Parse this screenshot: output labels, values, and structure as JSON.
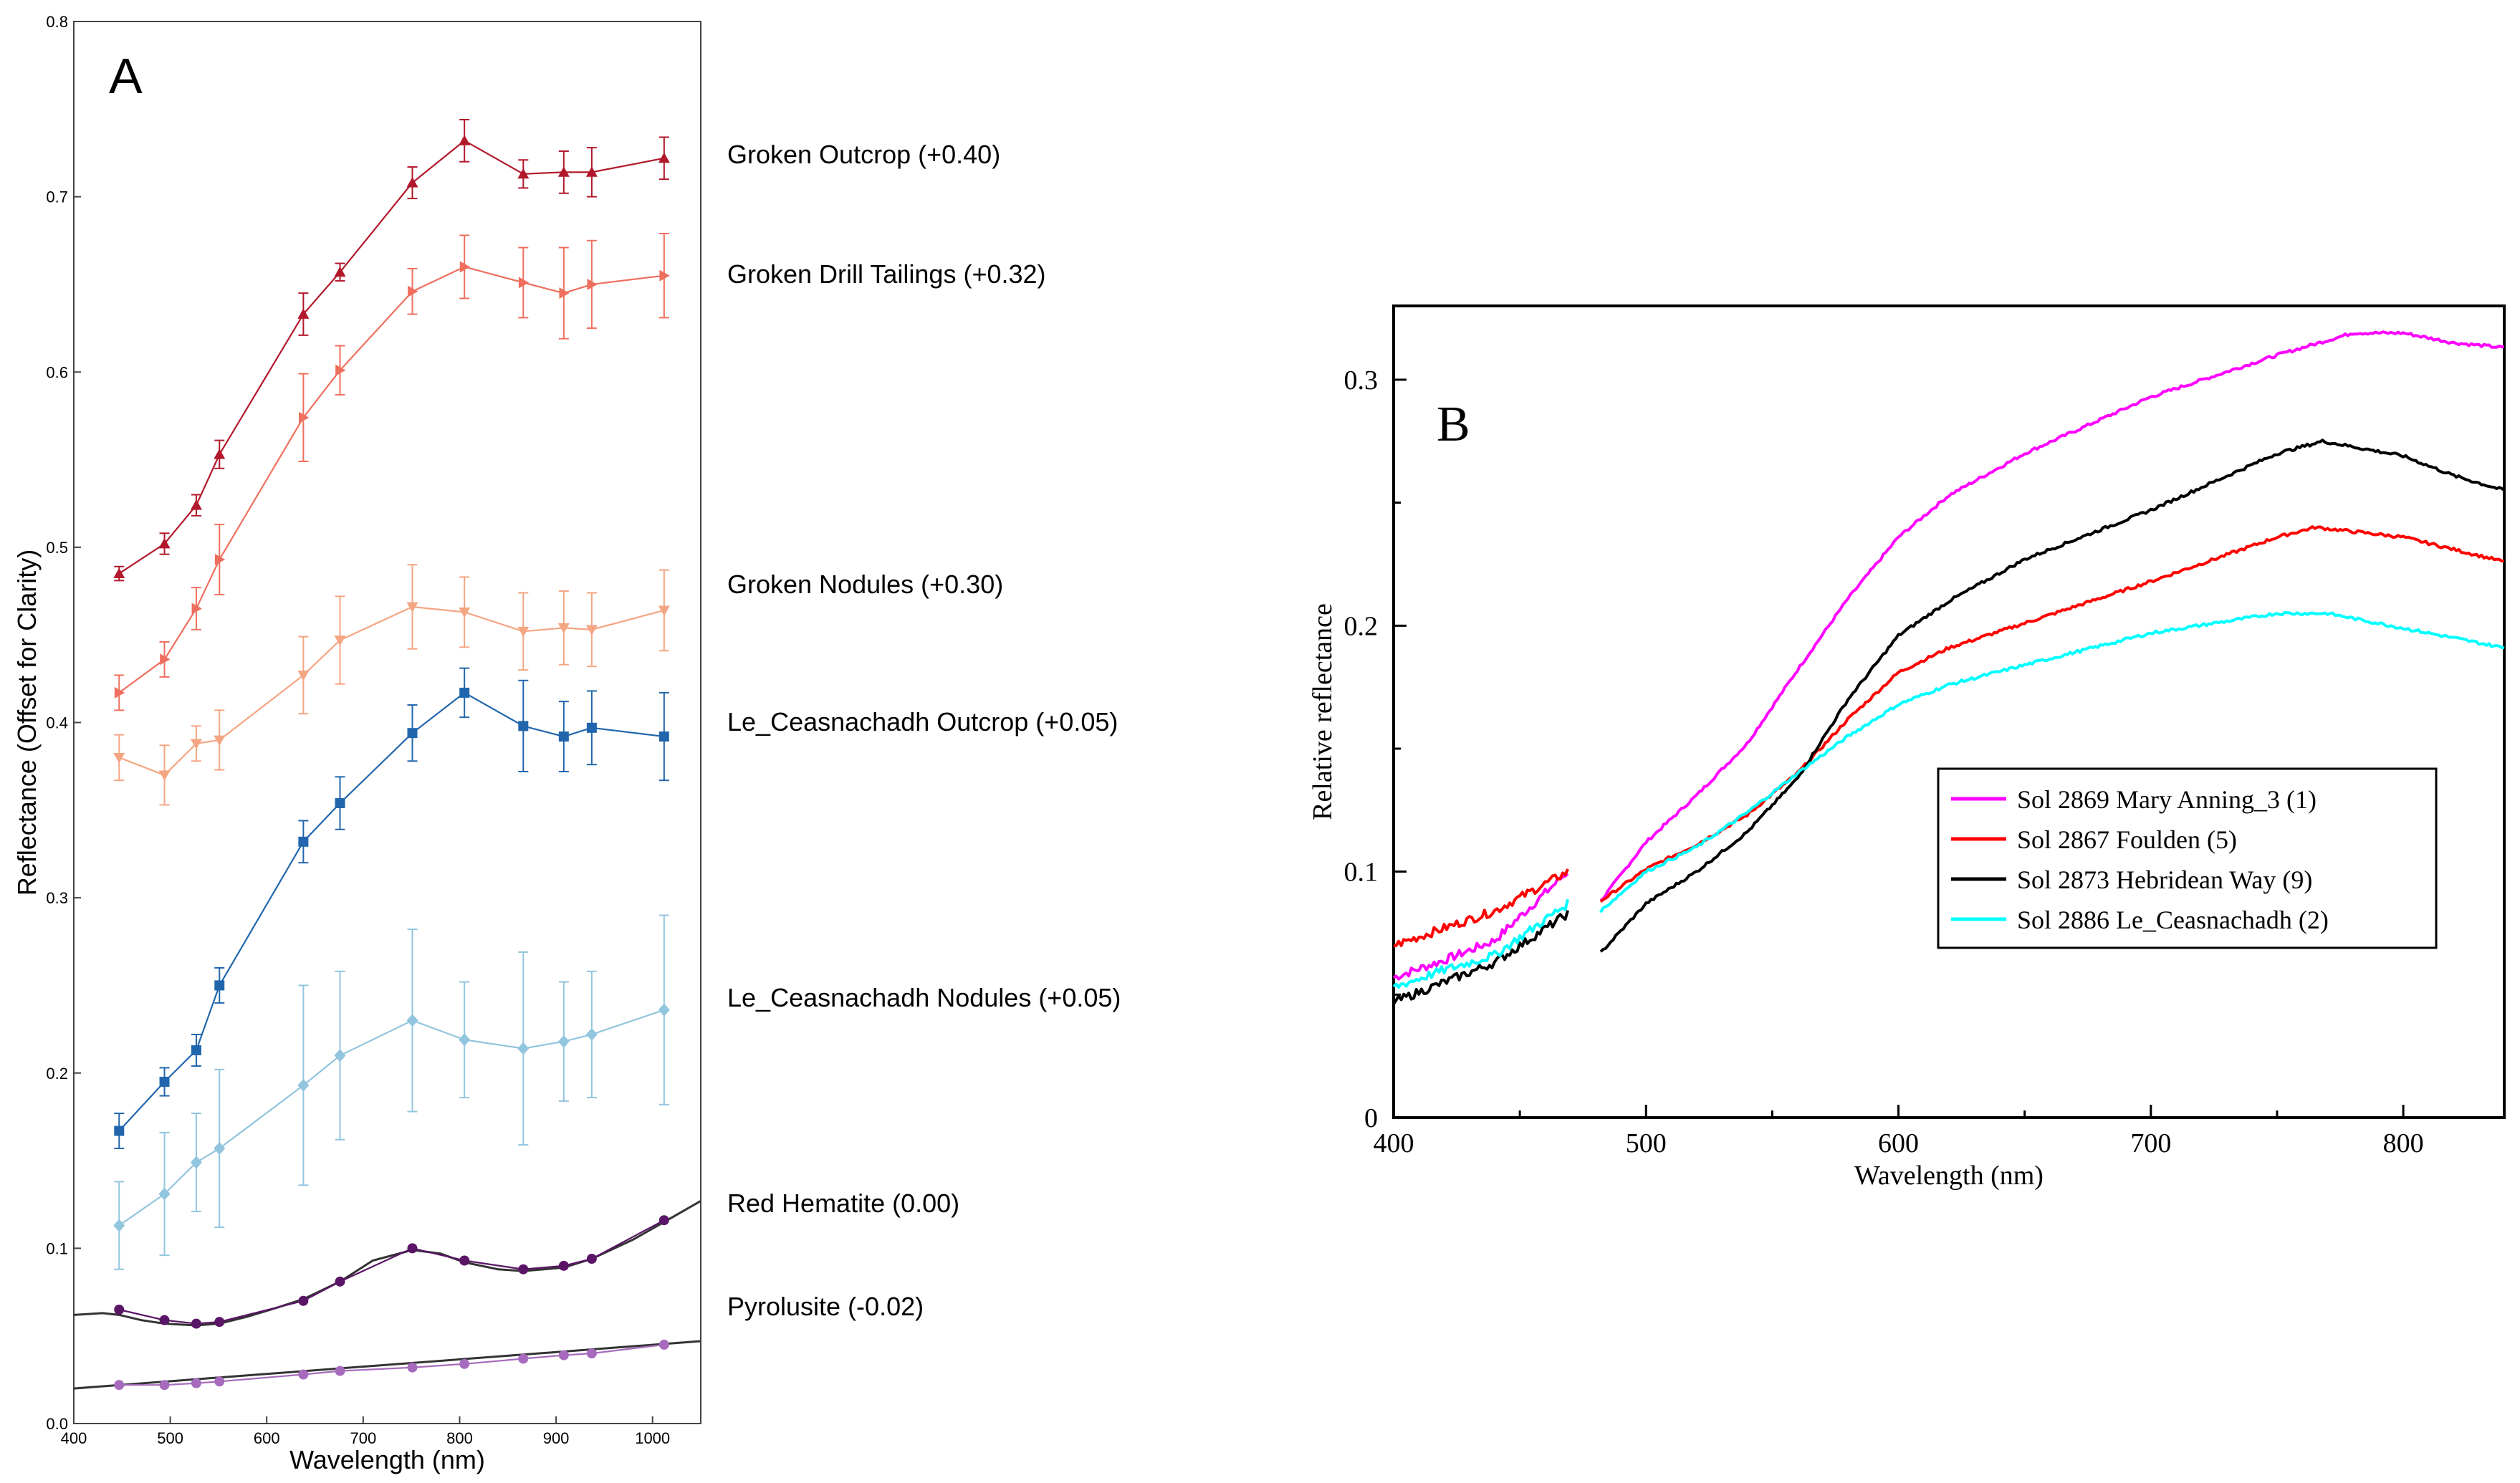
{
  "chart_data": [
    {
      "panel": "A",
      "type": "line",
      "title": "",
      "xlabel": "Wavelength (nm)",
      "ylabel": "Reflectance (Offset for Clarity)",
      "xlim": [
        400,
        1050
      ],
      "ylim": [
        0.0,
        0.8
      ],
      "xticks": [
        400,
        500,
        600,
        700,
        800,
        900,
        1000
      ],
      "yticks": [
        0.0,
        0.1,
        0.2,
        0.3,
        0.4,
        0.5,
        0.6,
        0.7,
        0.8
      ],
      "xtick_labels": [
        "400",
        "500",
        "600",
        "700",
        "800",
        "900",
        "1000"
      ],
      "ytick_labels": [
        "0.0",
        "0.1",
        "0.2",
        "0.3",
        "0.4",
        "0.5",
        "0.6",
        "0.7",
        "0.8"
      ],
      "x": [
        447,
        494,
        527,
        551,
        638,
        676,
        751,
        805,
        866,
        908,
        937,
        1012
      ],
      "series": [
        {
          "name": "Groken Outcrop (+0.40)",
          "color": "#b2182b",
          "marker": "triangle-up",
          "values": [
            0.485,
            0.502,
            0.524,
            0.553,
            0.633,
            0.657,
            0.708,
            0.732,
            0.713,
            0.714,
            0.714,
            0.722
          ],
          "errors": [
            0.004,
            0.006,
            0.006,
            0.008,
            0.012,
            0.005,
            0.009,
            0.012,
            0.008,
            0.012,
            0.014,
            0.012
          ]
        },
        {
          "name": "Groken Drill Tailings (+0.32)",
          "color": "#ef6f5e",
          "marker": "triangle-right",
          "values": [
            0.417,
            0.436,
            0.465,
            0.493,
            0.574,
            0.601,
            0.646,
            0.66,
            0.651,
            0.645,
            0.65,
            0.655
          ],
          "errors": [
            0.01,
            0.01,
            0.012,
            0.02,
            0.025,
            0.014,
            0.013,
            0.018,
            0.02,
            0.026,
            0.025,
            0.024
          ]
        },
        {
          "name": "Groken Nodules (+0.30)",
          "color": "#f4a582",
          "marker": "triangle-down",
          "values": [
            0.38,
            0.37,
            0.388,
            0.39,
            0.427,
            0.447,
            0.466,
            0.463,
            0.452,
            0.454,
            0.453,
            0.464
          ],
          "errors": [
            0.013,
            0.017,
            0.01,
            0.017,
            0.022,
            0.025,
            0.024,
            0.02,
            0.022,
            0.021,
            0.021,
            0.023
          ]
        },
        {
          "name": "Le_Ceasnachadh Outcrop (+0.05)",
          "color": "#2166ac",
          "marker": "square",
          "values": [
            0.167,
            0.195,
            0.213,
            0.25,
            0.332,
            0.354,
            0.394,
            0.417,
            0.398,
            0.392,
            0.397,
            0.392
          ],
          "errors": [
            0.01,
            0.008,
            0.009,
            0.01,
            0.012,
            0.015,
            0.016,
            0.014,
            0.026,
            0.02,
            0.021,
            0.025
          ]
        },
        {
          "name": "Le_Ceasnachadh Nodules (+0.05)",
          "color": "#92c5de",
          "marker": "diamond",
          "values": [
            0.113,
            0.131,
            0.149,
            0.157,
            0.193,
            0.21,
            0.23,
            0.219,
            0.214,
            0.218,
            0.222,
            0.236
          ],
          "errors": [
            0.025,
            0.035,
            0.028,
            0.045,
            0.057,
            0.048,
            0.052,
            0.033,
            0.055,
            0.034,
            0.036,
            0.054
          ]
        },
        {
          "name": "Red Hematite (0.00)",
          "color": "#5a1566",
          "marker": "circle",
          "values": [
            0.065,
            0.059,
            0.057,
            0.058,
            0.07,
            0.081,
            0.1,
            0.093,
            0.088,
            0.09,
            0.094,
            0.116
          ],
          "errors": [],
          "reference_curve": {
            "x": [
              400,
              430,
              447,
              470,
              494,
              527,
              551,
              580,
              610,
              638,
              676,
              710,
              751,
              780,
              805,
              840,
              866,
              908,
              937,
              980,
              1012,
              1050
            ],
            "values": [
              0.062,
              0.063,
              0.062,
              0.059,
              0.057,
              0.056,
              0.057,
              0.061,
              0.066,
              0.071,
              0.081,
              0.093,
              0.099,
              0.097,
              0.092,
              0.088,
              0.087,
              0.089,
              0.094,
              0.105,
              0.115,
              0.127
            ],
            "color": "#333333"
          }
        },
        {
          "name": "Pyrolusite (-0.02)",
          "color": "#a66bbd",
          "marker": "circle",
          "values": [
            0.022,
            0.022,
            0.023,
            0.024,
            0.028,
            0.03,
            0.032,
            0.034,
            0.037,
            0.039,
            0.04,
            0.045
          ],
          "errors": [],
          "reference_curve": {
            "x": [
              400,
              1050
            ],
            "values": [
              0.02,
              0.047
            ],
            "color": "#333333"
          }
        }
      ]
    },
    {
      "panel": "B",
      "type": "line",
      "title": "",
      "xlabel": "Wavelength (nm)",
      "ylabel": "Relative reflectance",
      "xlim": [
        400,
        840
      ],
      "ylim": [
        0.0,
        0.33
      ],
      "xticks": [
        400,
        500,
        600,
        700,
        800
      ],
      "yticks": [
        0.0,
        0.1,
        0.2,
        0.3
      ],
      "xtick_labels": [
        "400",
        "500",
        "600",
        "700",
        "800"
      ],
      "ytick_labels": [
        "0",
        "0.1",
        "0.2",
        "0.3"
      ],
      "legend_position": "lower-right",
      "gap": [
        469,
        482
      ],
      "series": [
        {
          "name": "Sol 2869 Mary Anning_3 (1)",
          "color": "#ff00ff",
          "x": [
            400,
            420,
            440,
            469,
            482,
            500,
            520,
            540,
            560,
            580,
            600,
            620,
            650,
            700,
            750,
            780,
            800,
            820,
            840
          ],
          "values": [
            0.057,
            0.064,
            0.072,
            0.1,
            0.088,
            0.112,
            0.131,
            0.152,
            0.182,
            0.211,
            0.236,
            0.253,
            0.27,
            0.293,
            0.31,
            0.319,
            0.319,
            0.315,
            0.313
          ]
        },
        {
          "name": "Sol 2867 Foulden (5)",
          "color": "#ff0000",
          "x": [
            400,
            420,
            440,
            469,
            482,
            500,
            520,
            540,
            560,
            580,
            600,
            620,
            650,
            700,
            750,
            765,
            800,
            820,
            840
          ],
          "values": [
            0.07,
            0.077,
            0.084,
            0.1,
            0.088,
            0.101,
            0.111,
            0.123,
            0.14,
            0.162,
            0.181,
            0.191,
            0.201,
            0.218,
            0.236,
            0.24,
            0.236,
            0.231,
            0.226
          ]
        },
        {
          "name": "Sol 2873 Hebridean Way (9)",
          "color": "#000000",
          "x": [
            400,
            420,
            440,
            469,
            482,
            500,
            520,
            540,
            560,
            580,
            600,
            620,
            650,
            700,
            750,
            768,
            800,
            820,
            840
          ],
          "values": [
            0.047,
            0.055,
            0.063,
            0.083,
            0.067,
            0.087,
            0.1,
            0.116,
            0.138,
            0.17,
            0.196,
            0.21,
            0.227,
            0.247,
            0.27,
            0.275,
            0.269,
            0.261,
            0.255
          ]
        },
        {
          "name": "Sol 2886 Le_Ceasnachadh (2)",
          "color": "#00ffff",
          "x": [
            400,
            420,
            440,
            469,
            482,
            500,
            520,
            540,
            560,
            580,
            600,
            620,
            650,
            700,
            750,
            770,
            800,
            820,
            840
          ],
          "values": [
            0.053,
            0.06,
            0.066,
            0.087,
            0.084,
            0.1,
            0.11,
            0.124,
            0.14,
            0.155,
            0.168,
            0.176,
            0.184,
            0.197,
            0.205,
            0.205,
            0.199,
            0.195,
            0.191
          ]
        }
      ]
    }
  ]
}
